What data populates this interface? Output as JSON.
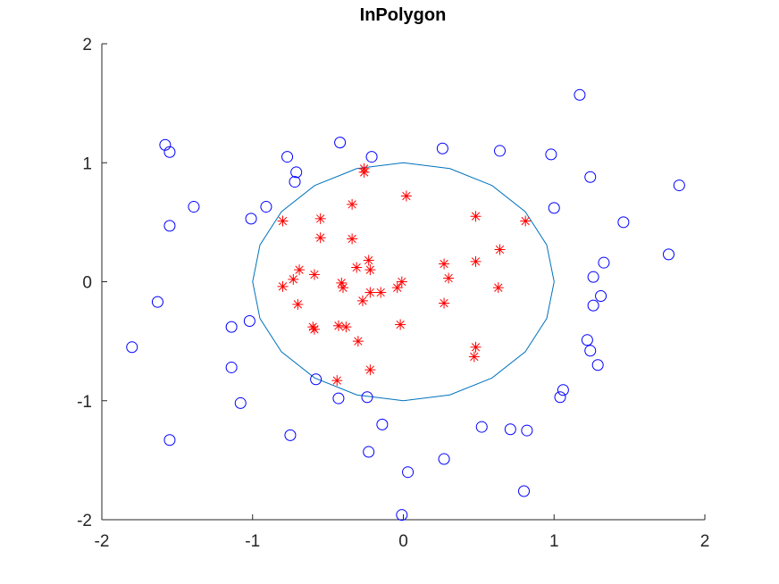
{
  "chart_data": {
    "type": "scatter",
    "title": "InPolygon",
    "xlabel": "",
    "ylabel": "",
    "xlim": [
      -2,
      2
    ],
    "ylim": [
      -2,
      2
    ],
    "xticks": [
      -2,
      -1,
      0,
      1,
      2
    ],
    "yticks": [
      -2,
      -1,
      0,
      1,
      2
    ],
    "xtick_labels": [
      "-2",
      "-1",
      "0",
      "1",
      "2"
    ],
    "ytick_labels": [
      "-2",
      "-1",
      "0",
      "1",
      "2"
    ],
    "grid": false,
    "legend": "none",
    "colors": {
      "polygon": "#0072bd",
      "inside": "#ff0000",
      "outside": "#0000ff",
      "axis": "#262626"
    },
    "polygon": [
      [
        1.0,
        0.0
      ],
      [
        0.951,
        0.309
      ],
      [
        0.809,
        0.588
      ],
      [
        0.588,
        0.809
      ],
      [
        0.309,
        0.951
      ],
      [
        0.0,
        1.0
      ],
      [
        -0.309,
        0.951
      ],
      [
        -0.588,
        0.809
      ],
      [
        -0.809,
        0.588
      ],
      [
        -0.951,
        0.309
      ],
      [
        -1.0,
        0.0
      ],
      [
        -0.951,
        -0.309
      ],
      [
        -0.809,
        -0.588
      ],
      [
        -0.588,
        -0.809
      ],
      [
        -0.309,
        -0.951
      ],
      [
        0.0,
        -1.0
      ],
      [
        0.309,
        -0.951
      ],
      [
        0.588,
        -0.809
      ],
      [
        0.809,
        -0.588
      ],
      [
        0.951,
        -0.309
      ],
      [
        1.0,
        0.0
      ]
    ],
    "inside_points": [
      [
        -0.26,
        0.95
      ],
      [
        -0.26,
        0.92
      ],
      [
        0.02,
        0.72
      ],
      [
        -0.34,
        0.65
      ],
      [
        -0.55,
        0.53
      ],
      [
        -0.8,
        0.51
      ],
      [
        0.48,
        0.55
      ],
      [
        0.81,
        0.51
      ],
      [
        -0.55,
        0.37
      ],
      [
        -0.34,
        0.36
      ],
      [
        0.64,
        0.27
      ],
      [
        -0.23,
        0.18
      ],
      [
        0.27,
        0.15
      ],
      [
        0.48,
        0.17
      ],
      [
        -0.31,
        0.12
      ],
      [
        -0.22,
        0.1
      ],
      [
        -0.69,
        0.1
      ],
      [
        -0.59,
        0.06
      ],
      [
        0.3,
        0.03
      ],
      [
        -0.73,
        0.02
      ],
      [
        -0.8,
        -0.04
      ],
      [
        -0.41,
        -0.01
      ],
      [
        -0.4,
        -0.05
      ],
      [
        -0.01,
        0.0
      ],
      [
        -0.04,
        -0.05
      ],
      [
        -0.22,
        -0.09
      ],
      [
        -0.15,
        -0.09
      ],
      [
        0.63,
        -0.05
      ],
      [
        -0.7,
        -0.19
      ],
      [
        0.27,
        -0.18
      ],
      [
        -0.27,
        -0.16
      ],
      [
        -0.6,
        -0.38
      ],
      [
        -0.59,
        -0.4
      ],
      [
        -0.43,
        -0.37
      ],
      [
        -0.38,
        -0.38
      ],
      [
        -0.02,
        -0.36
      ],
      [
        -0.3,
        -0.5
      ],
      [
        0.48,
        -0.55
      ],
      [
        0.47,
        -0.63
      ],
      [
        -0.44,
        -0.83
      ],
      [
        -0.22,
        -0.74
      ]
    ],
    "outside_points": [
      [
        1.17,
        1.57
      ],
      [
        -1.58,
        1.15
      ],
      [
        -1.55,
        1.09
      ],
      [
        -0.42,
        1.17
      ],
      [
        0.26,
        1.12
      ],
      [
        0.64,
        1.1
      ],
      [
        0.98,
        1.07
      ],
      [
        -0.77,
        1.05
      ],
      [
        -0.21,
        1.05
      ],
      [
        -0.71,
        0.92
      ],
      [
        -0.72,
        0.84
      ],
      [
        1.24,
        0.88
      ],
      [
        1.83,
        0.81
      ],
      [
        -1.39,
        0.63
      ],
      [
        -0.91,
        0.63
      ],
      [
        1.0,
        0.62
      ],
      [
        -1.01,
        0.53
      ],
      [
        1.46,
        0.5
      ],
      [
        -1.55,
        0.47
      ],
      [
        1.76,
        0.23
      ],
      [
        1.33,
        0.16
      ],
      [
        1.26,
        0.04
      ],
      [
        1.31,
        -0.12
      ],
      [
        -1.63,
        -0.17
      ],
      [
        1.26,
        -0.2
      ],
      [
        -1.02,
        -0.33
      ],
      [
        -1.14,
        -0.38
      ],
      [
        1.22,
        -0.49
      ],
      [
        -1.8,
        -0.55
      ],
      [
        1.24,
        -0.58
      ],
      [
        1.29,
        -0.7
      ],
      [
        -1.14,
        -0.72
      ],
      [
        -0.58,
        -0.82
      ],
      [
        1.06,
        -0.91
      ],
      [
        1.04,
        -0.97
      ],
      [
        -0.43,
        -0.98
      ],
      [
        -0.24,
        -0.97
      ],
      [
        -1.08,
        -1.02
      ],
      [
        -0.14,
        -1.2
      ],
      [
        0.52,
        -1.22
      ],
      [
        0.71,
        -1.24
      ],
      [
        0.82,
        -1.25
      ],
      [
        -0.75,
        -1.29
      ],
      [
        -1.55,
        -1.33
      ],
      [
        -0.23,
        -1.43
      ],
      [
        0.27,
        -1.49
      ],
      [
        0.03,
        -1.6
      ],
      [
        0.8,
        -1.76
      ],
      [
        -0.01,
        -1.96
      ]
    ]
  }
}
